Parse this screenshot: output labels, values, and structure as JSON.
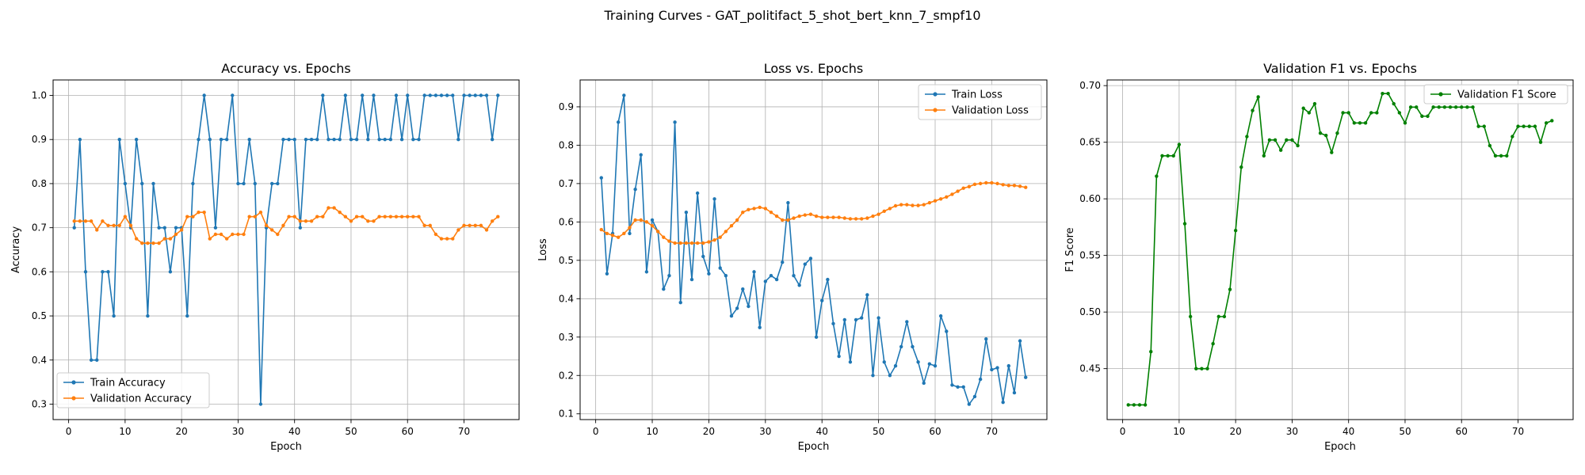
{
  "figure_title": "Training Curves - GAT_politifact_5_shot_bert_knn_7_smpf10",
  "colors": {
    "blue": "#1f77b4",
    "orange": "#ff7f0e",
    "green": "#008000"
  },
  "chart_data": [
    {
      "type": "line",
      "title": "Accuracy vs. Epochs",
      "xlabel": "Epoch",
      "ylabel": "Accuracy",
      "xlim": [
        -2.75,
        79.75
      ],
      "ylim": [
        0.265,
        1.035
      ],
      "xticks": [
        0,
        10,
        20,
        30,
        40,
        50,
        60,
        70
      ],
      "yticks": [
        0.3,
        0.4,
        0.5,
        0.6,
        0.7,
        0.8,
        0.9,
        1.0
      ],
      "ytick_labels": [
        "0.3",
        "0.4",
        "0.5",
        "0.6",
        "0.7",
        "0.8",
        "0.9",
        "1.0"
      ],
      "grid": true,
      "legend_position": "lower-left",
      "x": [
        1,
        2,
        3,
        4,
        5,
        6,
        7,
        8,
        9,
        10,
        11,
        12,
        13,
        14,
        15,
        16,
        17,
        18,
        19,
        20,
        21,
        22,
        23,
        24,
        25,
        26,
        27,
        28,
        29,
        30,
        31,
        32,
        33,
        34,
        35,
        36,
        37,
        38,
        39,
        40,
        41,
        42,
        43,
        44,
        45,
        46,
        47,
        48,
        49,
        50,
        51,
        52,
        53,
        54,
        55,
        56,
        57,
        58,
        59,
        60,
        61,
        62,
        63,
        64,
        65,
        66,
        67,
        68,
        69,
        70,
        71,
        72,
        73,
        74,
        75,
        76
      ],
      "series": [
        {
          "name": "Train Accuracy",
          "color": "#1f77b4",
          "values": [
            0.7,
            0.9,
            0.6,
            0.4,
            0.4,
            0.6,
            0.6,
            0.5,
            0.9,
            0.8,
            0.7,
            0.9,
            0.8,
            0.5,
            0.8,
            0.7,
            0.7,
            0.6,
            0.7,
            0.7,
            0.5,
            0.8,
            0.9,
            1.0,
            0.9,
            0.7,
            0.9,
            0.9,
            1.0,
            0.8,
            0.8,
            0.9,
            0.8,
            0.3,
            0.7,
            0.8,
            0.8,
            0.9,
            0.9,
            0.9,
            0.7,
            0.9,
            0.9,
            0.9,
            1.0,
            0.9,
            0.9,
            0.9,
            1.0,
            0.9,
            0.9,
            1.0,
            0.9,
            1.0,
            0.9,
            0.9,
            0.9,
            1.0,
            0.9,
            1.0,
            0.9,
            0.9,
            1.0,
            1.0,
            1.0,
            1.0,
            1.0,
            1.0,
            0.9,
            1.0,
            1.0,
            1.0,
            1.0,
            1.0,
            0.9,
            1.0
          ]
        },
        {
          "name": "Validation Accuracy",
          "color": "#ff7f0e",
          "values": [
            0.715,
            0.715,
            0.715,
            0.715,
            0.695,
            0.715,
            0.705,
            0.705,
            0.705,
            0.725,
            0.705,
            0.675,
            0.665,
            0.665,
            0.665,
            0.665,
            0.675,
            0.675,
            0.685,
            0.695,
            0.725,
            0.725,
            0.735,
            0.735,
            0.675,
            0.685,
            0.685,
            0.675,
            0.685,
            0.685,
            0.685,
            0.725,
            0.725,
            0.735,
            0.705,
            0.695,
            0.685,
            0.705,
            0.725,
            0.725,
            0.715,
            0.715,
            0.715,
            0.725,
            0.725,
            0.745,
            0.745,
            0.735,
            0.725,
            0.715,
            0.725,
            0.725,
            0.715,
            0.715,
            0.725,
            0.725,
            0.725,
            0.725,
            0.725,
            0.725,
            0.725,
            0.725,
            0.705,
            0.705,
            0.685,
            0.675,
            0.675,
            0.675,
            0.695,
            0.705,
            0.705,
            0.705,
            0.705,
            0.695,
            0.715,
            0.725
          ]
        }
      ]
    },
    {
      "type": "line",
      "title": "Loss vs. Epochs",
      "xlabel": "Epoch",
      "ylabel": "Loss",
      "xlim": [
        -2.75,
        79.75
      ],
      "ylim": [
        0.085,
        0.97
      ],
      "xticks": [
        0,
        10,
        20,
        30,
        40,
        50,
        60,
        70
      ],
      "yticks": [
        0.1,
        0.2,
        0.3,
        0.4,
        0.5,
        0.6,
        0.7,
        0.8,
        0.9
      ],
      "ytick_labels": [
        "0.1",
        "0.2",
        "0.3",
        "0.4",
        "0.5",
        "0.6",
        "0.7",
        "0.8",
        "0.9"
      ],
      "grid": true,
      "legend_position": "upper-right",
      "x": [
        1,
        2,
        3,
        4,
        5,
        6,
        7,
        8,
        9,
        10,
        11,
        12,
        13,
        14,
        15,
        16,
        17,
        18,
        19,
        20,
        21,
        22,
        23,
        24,
        25,
        26,
        27,
        28,
        29,
        30,
        31,
        32,
        33,
        34,
        35,
        36,
        37,
        38,
        39,
        40,
        41,
        42,
        43,
        44,
        45,
        46,
        47,
        48,
        49,
        50,
        51,
        52,
        53,
        54,
        55,
        56,
        57,
        58,
        59,
        60,
        61,
        62,
        63,
        64,
        65,
        66,
        67,
        68,
        69,
        70,
        71,
        72,
        73,
        74,
        75,
        76
      ],
      "series": [
        {
          "name": "Train Loss",
          "color": "#1f77b4",
          "values": [
            0.715,
            0.465,
            0.57,
            0.86,
            0.93,
            0.57,
            0.685,
            0.775,
            0.47,
            0.605,
            0.575,
            0.425,
            0.46,
            0.86,
            0.39,
            0.625,
            0.45,
            0.675,
            0.51,
            0.465,
            0.66,
            0.48,
            0.46,
            0.355,
            0.375,
            0.425,
            0.38,
            0.47,
            0.325,
            0.445,
            0.46,
            0.45,
            0.495,
            0.65,
            0.46,
            0.435,
            0.49,
            0.505,
            0.3,
            0.395,
            0.45,
            0.335,
            0.25,
            0.345,
            0.235,
            0.345,
            0.35,
            0.41,
            0.2,
            0.35,
            0.235,
            0.2,
            0.225,
            0.275,
            0.34,
            0.275,
            0.235,
            0.18,
            0.23,
            0.225,
            0.355,
            0.315,
            0.175,
            0.17,
            0.17,
            0.125,
            0.145,
            0.19,
            0.295,
            0.215,
            0.22,
            0.13,
            0.225,
            0.155,
            0.29,
            0.195
          ]
        },
        {
          "name": "Validation Loss",
          "color": "#ff7f0e",
          "values": [
            0.58,
            0.57,
            0.565,
            0.56,
            0.57,
            0.585,
            0.605,
            0.605,
            0.6,
            0.59,
            0.575,
            0.56,
            0.55,
            0.545,
            0.545,
            0.545,
            0.545,
            0.545,
            0.545,
            0.548,
            0.553,
            0.56,
            0.575,
            0.59,
            0.605,
            0.625,
            0.632,
            0.635,
            0.638,
            0.635,
            0.625,
            0.615,
            0.605,
            0.605,
            0.61,
            0.615,
            0.618,
            0.62,
            0.615,
            0.612,
            0.612,
            0.612,
            0.612,
            0.61,
            0.608,
            0.608,
            0.608,
            0.61,
            0.615,
            0.62,
            0.628,
            0.635,
            0.642,
            0.645,
            0.645,
            0.643,
            0.643,
            0.645,
            0.65,
            0.655,
            0.66,
            0.665,
            0.672,
            0.68,
            0.688,
            0.692,
            0.698,
            0.7,
            0.702,
            0.702,
            0.7,
            0.697,
            0.695,
            0.695,
            0.693,
            0.69
          ]
        }
      ]
    },
    {
      "type": "line",
      "title": "Validation F1 vs. Epochs",
      "xlabel": "Epoch",
      "ylabel": "F1 Score",
      "xlim": [
        -2.75,
        79.75
      ],
      "ylim": [
        0.405,
        0.705
      ],
      "xticks": [
        0,
        10,
        20,
        30,
        40,
        50,
        60,
        70
      ],
      "yticks": [
        0.45,
        0.5,
        0.55,
        0.6,
        0.65,
        0.7
      ],
      "ytick_labels": [
        "0.45",
        "0.50",
        "0.55",
        "0.60",
        "0.65",
        "0.70"
      ],
      "grid": true,
      "legend_position": "upper-right",
      "x": [
        1,
        2,
        3,
        4,
        5,
        6,
        7,
        8,
        9,
        10,
        11,
        12,
        13,
        14,
        15,
        16,
        17,
        18,
        19,
        20,
        21,
        22,
        23,
        24,
        25,
        26,
        27,
        28,
        29,
        30,
        31,
        32,
        33,
        34,
        35,
        36,
        37,
        38,
        39,
        40,
        41,
        42,
        43,
        44,
        45,
        46,
        47,
        48,
        49,
        50,
        51,
        52,
        53,
        54,
        55,
        56,
        57,
        58,
        59,
        60,
        61,
        62,
        63,
        64,
        65,
        66,
        67,
        68,
        69,
        70,
        71,
        72,
        73,
        74,
        75,
        76
      ],
      "series": [
        {
          "name": "Validation F1 Score",
          "color": "#008000",
          "values": [
            0.418,
            0.418,
            0.418,
            0.418,
            0.465,
            0.62,
            0.638,
            0.638,
            0.638,
            0.648,
            0.578,
            0.496,
            0.45,
            0.45,
            0.45,
            0.472,
            0.496,
            0.496,
            0.52,
            0.572,
            0.628,
            0.655,
            0.678,
            0.69,
            0.638,
            0.652,
            0.652,
            0.643,
            0.652,
            0.652,
            0.647,
            0.68,
            0.676,
            0.684,
            0.658,
            0.656,
            0.641,
            0.658,
            0.676,
            0.676,
            0.667,
            0.667,
            0.667,
            0.676,
            0.676,
            0.693,
            0.693,
            0.684,
            0.676,
            0.667,
            0.681,
            0.681,
            0.673,
            0.673,
            0.681,
            0.681,
            0.681,
            0.681,
            0.681,
            0.681,
            0.681,
            0.681,
            0.664,
            0.664,
            0.647,
            0.638,
            0.638,
            0.638,
            0.655,
            0.664,
            0.664,
            0.664,
            0.664,
            0.65,
            0.667,
            0.669
          ]
        }
      ]
    }
  ]
}
